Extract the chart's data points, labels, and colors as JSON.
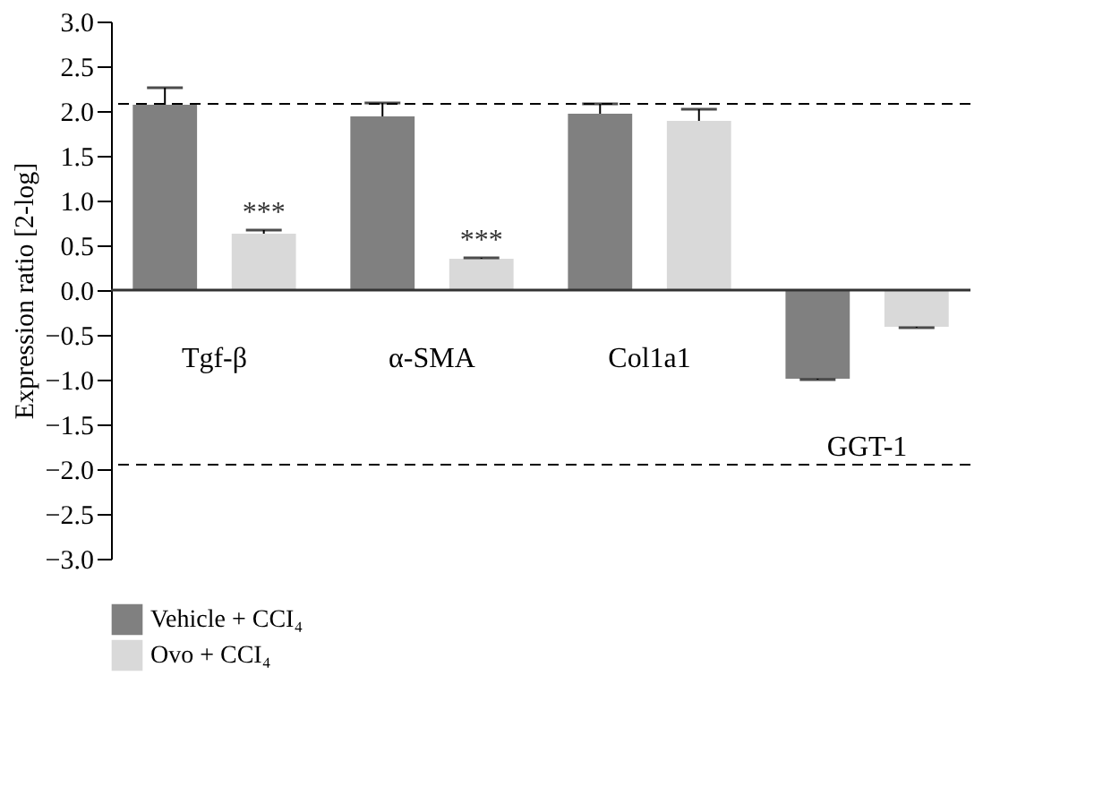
{
  "chart_data": {
    "type": "bar",
    "ylabel": "Expression ratio [2-log]",
    "categories": [
      "Tgf-β",
      "α-SMA",
      "Col1a1",
      "GGT-1"
    ],
    "series": [
      {
        "name": "Vehicle + CCI₄",
        "color": "#808080",
        "values": [
          2.07,
          1.94,
          1.97,
          -0.99
        ],
        "errors": [
          0.19,
          0.15,
          0.11,
          0.01
        ]
      },
      {
        "name": "Ovo + CCI₄",
        "color": "#d9d9d9",
        "values": [
          0.63,
          0.35,
          1.89,
          -0.41
        ],
        "errors": [
          0.04,
          0.01,
          0.13,
          0.01
        ]
      }
    ],
    "ylim": [
      -3,
      3
    ],
    "yticks": [
      {
        "value": -3,
        "label": "−3.0"
      },
      {
        "value": -2.5,
        "label": "−2.5"
      },
      {
        "value": -2,
        "label": "−2.0"
      },
      {
        "value": -1.5,
        "label": "−1.5"
      },
      {
        "value": -1,
        "label": "−1.0"
      },
      {
        "value": -0.5,
        "label": "−0.5"
      },
      {
        "value": 0,
        "label": "0.0"
      },
      {
        "value": 0.5,
        "label": "0.5"
      },
      {
        "value": 1,
        "label": "1.0"
      },
      {
        "value": 1.5,
        "label": "1.5"
      },
      {
        "value": 2,
        "label": "2.0"
      },
      {
        "value": 2.5,
        "label": "2.5"
      },
      {
        "value": 3,
        "label": "3.0"
      }
    ],
    "ref_lines": [
      {
        "axis": "y",
        "value": 2.08,
        "line_style": "dashed"
      },
      {
        "axis": "y",
        "value": -1.95,
        "line_style": "dashed"
      }
    ],
    "annotations": [
      "***",
      "***"
    ],
    "grid": false,
    "legend": "bottom left"
  }
}
